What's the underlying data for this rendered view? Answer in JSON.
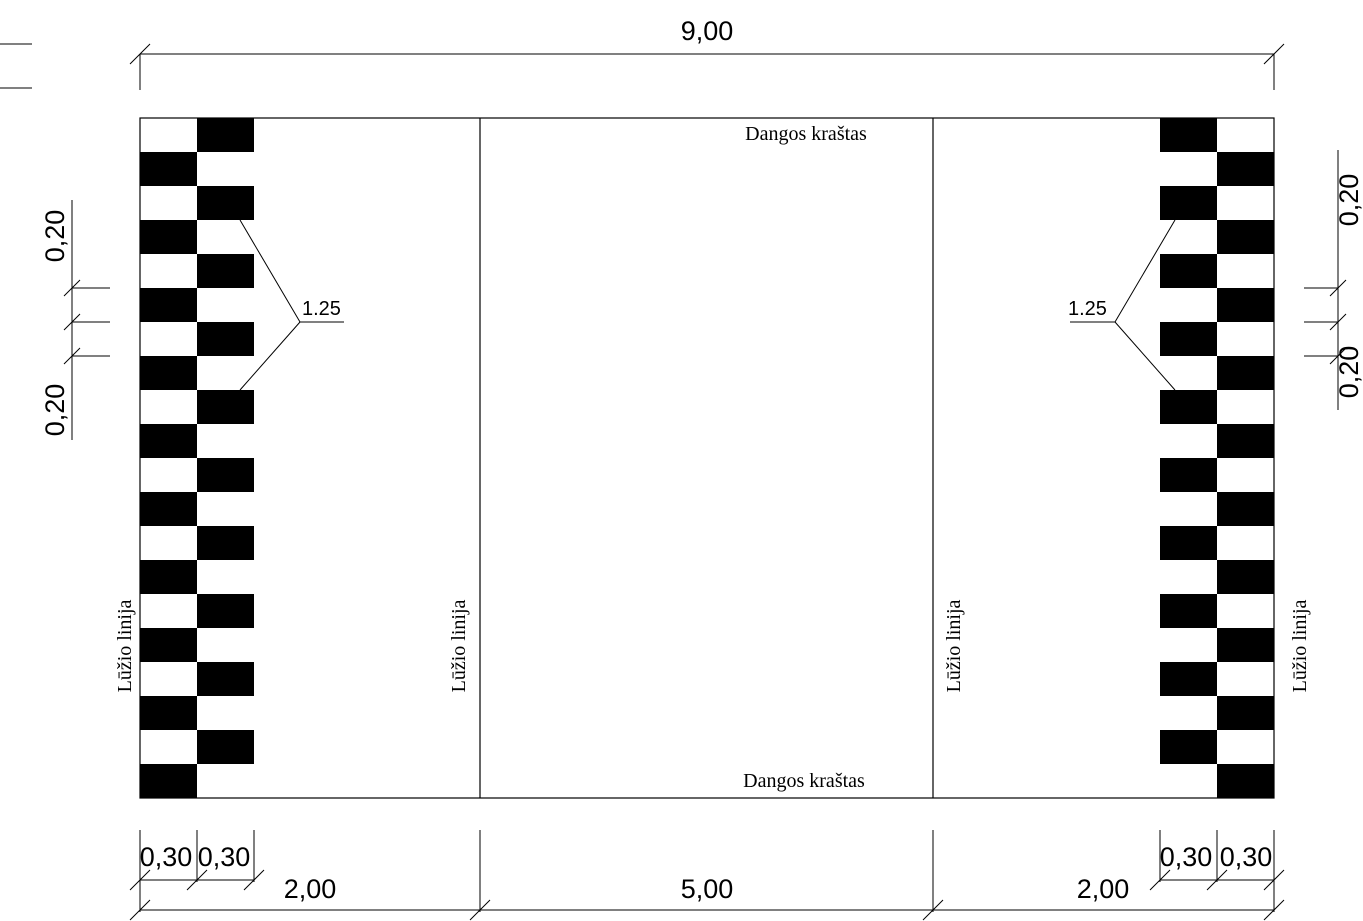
{
  "dimensions": {
    "total_width": "9,00",
    "left_band": "2,00",
    "center_band": "5,00",
    "right_band": "2,00",
    "left_col_1": "0,30",
    "left_col_2": "0,30",
    "right_col_1": "0,30",
    "right_col_2": "0,30",
    "left_height_upper": "0,20",
    "left_height_lower": "0,20",
    "right_height_upper": "0,20",
    "right_height_lower": "0,20"
  },
  "labels": {
    "edge_top": "Dangos kraštas",
    "edge_bottom": "Dangos kraštas",
    "break_line_1": "Lūžio linija",
    "break_line_2": "Lūžio linija",
    "break_line_3": "Lūžio linija",
    "break_line_4": "Lūžio linija",
    "leader_left": "1.25",
    "leader_right": "1.25"
  },
  "pattern": {
    "rows": 20,
    "colors": {
      "fill": "#000000",
      "background": "#ffffff"
    }
  }
}
